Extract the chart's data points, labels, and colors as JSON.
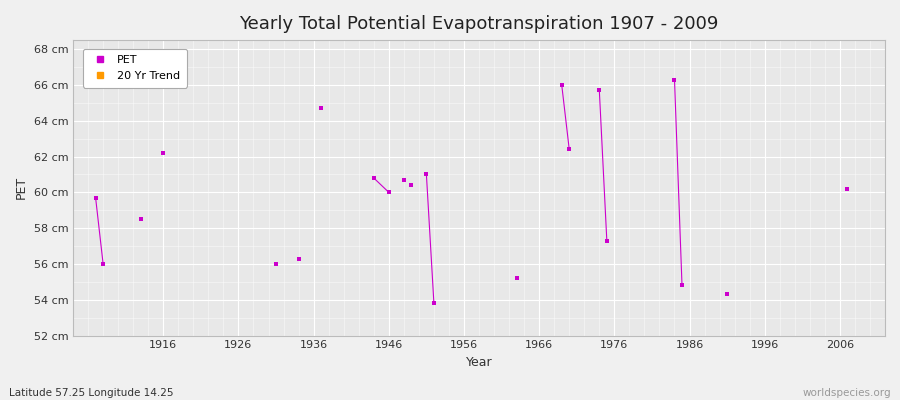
{
  "title": "Yearly Total Potential Evapotranspiration 1907 - 2009",
  "xlabel": "Year",
  "ylabel": "PET",
  "xlim": [
    1904,
    2012
  ],
  "ylim": [
    52,
    68.5
  ],
  "yticks": [
    52,
    54,
    56,
    58,
    60,
    62,
    64,
    66,
    68
  ],
  "ytick_labels": [
    "52 cm",
    "54 cm",
    "56 cm",
    "58 cm",
    "60 cm",
    "62 cm",
    "64 cm",
    "66 cm",
    "68 cm"
  ],
  "xticks": [
    1916,
    1926,
    1936,
    1946,
    1956,
    1966,
    1976,
    1986,
    1996,
    2006
  ],
  "pet_color": "#cc00cc",
  "trend_color": "#ff9900",
  "plot_bg": "#e8e8e8",
  "fig_bg": "#f0f0f0",
  "grid_color": "#ffffff",
  "pet_points": [
    [
      1907,
      59.7
    ],
    [
      1908,
      56.0
    ],
    [
      1913,
      58.5
    ],
    [
      1916,
      62.2
    ],
    [
      1931,
      56.0
    ],
    [
      1934,
      56.3
    ],
    [
      1937,
      64.7
    ],
    [
      1944,
      60.8
    ],
    [
      1946,
      60.0
    ],
    [
      1948,
      60.7
    ],
    [
      1949,
      60.4
    ],
    [
      1951,
      61.0
    ],
    [
      1952,
      53.8
    ],
    [
      1963,
      55.2
    ],
    [
      1969,
      66.0
    ],
    [
      1970,
      62.4
    ],
    [
      1974,
      65.7
    ],
    [
      1975,
      57.3
    ],
    [
      1984,
      66.3
    ],
    [
      1985,
      54.8
    ],
    [
      1991,
      54.3
    ],
    [
      2007,
      60.2
    ]
  ],
  "trend_segments": [
    [
      [
        1907,
        59.7
      ],
      [
        1908,
        56.0
      ]
    ],
    [
      [
        1944,
        60.8
      ],
      [
        1946,
        60.0
      ]
    ],
    [
      [
        1951,
        61.0
      ],
      [
        1952,
        53.8
      ]
    ],
    [
      [
        1969,
        66.0
      ],
      [
        1970,
        62.4
      ]
    ],
    [
      [
        1974,
        65.7
      ],
      [
        1975,
        57.3
      ]
    ],
    [
      [
        1984,
        66.3
      ],
      [
        1985,
        54.8
      ]
    ]
  ],
  "subtitle": "Latitude 57.25 Longitude 14.25",
  "watermark": "worldspecies.org",
  "title_fontsize": 13,
  "axis_fontsize": 9,
  "tick_fontsize": 8,
  "legend_fontsize": 8
}
